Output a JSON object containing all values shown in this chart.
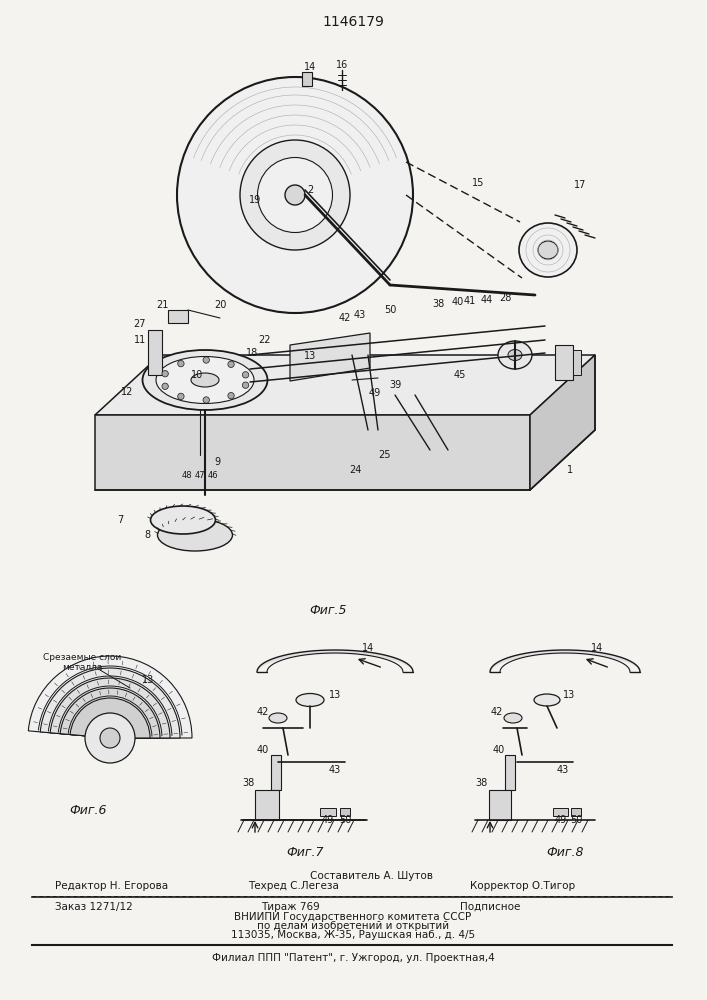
{
  "patent_number": "1146179",
  "fig5_label": "Фиг.5",
  "fig6_label": "Фиг.6",
  "fig7_label": "Фиг.7",
  "fig8_label": "Фиг.8",
  "fig6_annotation_line1": "Срезаемые слои",
  "fig6_annotation_line2": "металла",
  "editor_label": "Редактор Н. Егорова",
  "techred_label": "Техред С.Легеза",
  "corrector_label": "Корректор О.Тигор",
  "composer_label": "Составитель А. Шутов",
  "order_label": "Заказ 1271/12",
  "tirazh_label": "Тираж 769",
  "podpisnoe_label": "Подписное",
  "vniip1": "ВНИИПИ Государственного комитета СССР",
  "vniip2": "по делам изобретений и открытий",
  "address": "113035, Москва, Ж-35, Раушская наб., д. 4/5",
  "filial": "Филиал ППП \"Патент\", г. Ужгород, ул. Проектная,4",
  "bg_color": "#f5f3f0",
  "lc": "#1a1a1a"
}
